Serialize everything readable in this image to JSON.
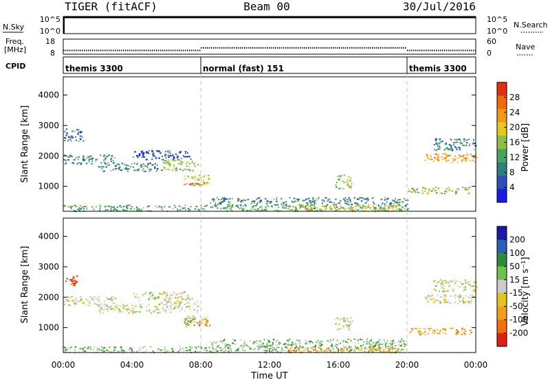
{
  "header": {
    "left_title": "TIGER (fitACF)",
    "center_title": "Beam 00",
    "right_title": "30/Jul/2016"
  },
  "colors": {
    "frame": "#000000",
    "guide_dash": "#c8c8c8",
    "power_scale": [
      "#1a1ae6",
      "#2b4fb5",
      "#2f7f7f",
      "#49a35e",
      "#8fbd48",
      "#e6c81e",
      "#f29a18",
      "#f06a10",
      "#e03010"
    ],
    "velocity_scale": [
      "#1a1aaa",
      "#2a60b0",
      "#2f8a3a",
      "#6cc24a",
      "#cccccc",
      "#e6c21e",
      "#f0a020",
      "#f07010",
      "#e02010"
    ]
  },
  "chart_data": [
    {
      "type": "line",
      "title": "",
      "xlabel": "",
      "labels_left": [
        "N.Sky"
      ],
      "y_ticks_left": [
        "10^5",
        "10^0"
      ],
      "y_ticks_right": [
        "10^5",
        "10^0"
      ],
      "labels_right": [
        "N.Search"
      ],
      "x": [
        0,
        0.25,
        0.5,
        23.8,
        24
      ],
      "series": [
        {
          "values": [
            5,
            5,
            5,
            5,
            5
          ]
        }
      ]
    },
    {
      "type": "scatter",
      "title": "",
      "labels_left": [
        "Freq.",
        "[MHz]"
      ],
      "y_ticks_left": [
        "18",
        "8"
      ],
      "y_ticks_right": [
        "60",
        "0"
      ],
      "labels_right": [
        "Nave"
      ],
      "ylim": [
        8,
        18
      ],
      "y2lim": [
        0,
        60
      ],
      "x": [
        0,
        8,
        8,
        20,
        20,
        24
      ],
      "series": [
        {
          "values": [
            10.5,
            10.5,
            12.2,
            12.2,
            10.5,
            10.5
          ]
        }
      ]
    },
    {
      "type": "table",
      "title": "CPID",
      "rows": [
        {
          "start": 0,
          "end": 8,
          "label": "themis 3300"
        },
        {
          "start": 8,
          "end": 20,
          "label": "normal (fast) 151"
        },
        {
          "start": 20,
          "end": 24,
          "label": "themis 3300"
        }
      ]
    },
    {
      "type": "heatmap",
      "ylabel": "Slant Range [km]",
      "colorbar_label": "Power [dB]",
      "colorbar_ticks": [
        "28",
        "24",
        "20",
        "16",
        "12",
        "8",
        "4"
      ],
      "ylim": [
        180,
        4600
      ],
      "y_ticks": [
        "1000",
        "2000",
        "3000",
        "4000"
      ],
      "xlim": [
        0,
        24
      ],
      "grid": false,
      "patches": [
        {
          "x": [
            0.0,
            3.0
          ],
          "y": [
            1750,
            2050
          ],
          "level": 2
        },
        {
          "x": [
            2.0,
            5.5
          ],
          "y": [
            1500,
            1800
          ],
          "level": 2
        },
        {
          "x": [
            4.0,
            7.5
          ],
          "y": [
            1900,
            2200
          ],
          "level": 1
        },
        {
          "x": [
            5.5,
            7.8
          ],
          "y": [
            1500,
            1900
          ],
          "level": 4
        },
        {
          "x": [
            7.0,
            8.5
          ],
          "y": [
            1050,
            1400
          ],
          "level": 5
        },
        {
          "x": [
            7.3,
            8.2
          ],
          "y": [
            1050,
            1150
          ],
          "level": 8
        },
        {
          "x": [
            0.0,
            1.2
          ],
          "y": [
            2500,
            2900
          ],
          "level": 1
        },
        {
          "x": [
            15.8,
            16.8
          ],
          "y": [
            950,
            1400
          ],
          "level": 4
        },
        {
          "x": [
            0.0,
            20.0
          ],
          "y": [
            200,
            400
          ],
          "level": 3
        },
        {
          "x": [
            8.5,
            20.0
          ],
          "y": [
            400,
            650
          ],
          "level": 2
        },
        {
          "x": [
            13.0,
            19.5
          ],
          "y": [
            200,
            400
          ],
          "level": 5
        },
        {
          "x": [
            20.0,
            23.8
          ],
          "y": [
            780,
            1000
          ],
          "level": 4
        },
        {
          "x": [
            21.0,
            24.0
          ],
          "y": [
            1800,
            2100
          ],
          "level": 6
        },
        {
          "x": [
            21.5,
            24.0
          ],
          "y": [
            2200,
            2600
          ],
          "level": 2
        }
      ]
    },
    {
      "type": "heatmap",
      "ylabel": "Slant Range [km]",
      "xlabel": "Time UT",
      "x_ticks": [
        "00:00",
        "04:00",
        "08:00",
        "12:00",
        "16:00",
        "20:00",
        "00:00"
      ],
      "colorbar_label": "Velocity [m s⁻¹]",
      "colorbar_ticks": [
        "200",
        "100",
        "50",
        "15",
        "-15",
        "-50",
        "-100",
        "-200"
      ],
      "ylim": [
        180,
        4600
      ],
      "y_ticks": [
        "1000",
        "2000",
        "3000",
        "4000"
      ],
      "xlim": [
        0,
        24
      ],
      "grid": false,
      "patches": [
        {
          "x": [
            0.0,
            3.0
          ],
          "y": [
            1750,
            2050
          ],
          "level": 4
        },
        {
          "x": [
            2.0,
            5.5
          ],
          "y": [
            1500,
            1800
          ],
          "level": 4
        },
        {
          "x": [
            4.0,
            7.5
          ],
          "y": [
            1900,
            2200
          ],
          "level": 4
        },
        {
          "x": [
            5.5,
            7.8
          ],
          "y": [
            1500,
            1900
          ],
          "level": 4
        },
        {
          "x": [
            7.0,
            8.5
          ],
          "y": [
            1050,
            1400
          ],
          "level": 6
        },
        {
          "x": [
            7.0,
            8.0
          ],
          "y": [
            1100,
            1400
          ],
          "level": 3
        },
        {
          "x": [
            0.0,
            0.8
          ],
          "y": [
            2400,
            2800
          ],
          "level": 8
        },
        {
          "x": [
            15.8,
            16.8
          ],
          "y": [
            950,
            1350
          ],
          "level": 4
        },
        {
          "x": [
            0.0,
            20.0
          ],
          "y": [
            200,
            400
          ],
          "level": 3
        },
        {
          "x": [
            8.5,
            20.0
          ],
          "y": [
            400,
            650
          ],
          "level": 3
        },
        {
          "x": [
            13.0,
            19.5
          ],
          "y": [
            200,
            400
          ],
          "level": 6
        },
        {
          "x": [
            20.0,
            23.8
          ],
          "y": [
            780,
            1000
          ],
          "level": 6
        },
        {
          "x": [
            21.0,
            24.0
          ],
          "y": [
            1800,
            2100
          ],
          "level": 4
        },
        {
          "x": [
            21.5,
            24.0
          ],
          "y": [
            2200,
            2600
          ],
          "level": 4
        }
      ]
    }
  ]
}
